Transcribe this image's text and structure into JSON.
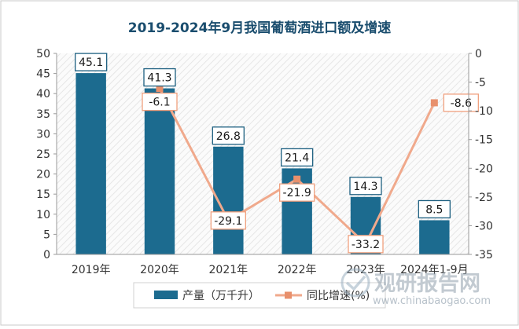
{
  "chart_data": {
    "type": "bar",
    "title": "2019-2024年9月我国葡萄酒进口额及增速",
    "categories": [
      "2019年",
      "2020年",
      "2021年",
      "2022年",
      "2023年",
      "2024年1-9月"
    ],
    "series": [
      {
        "name": "产量（万千升）",
        "type": "bar",
        "axis": "left",
        "values": [
          45.1,
          41.3,
          26.8,
          21.4,
          14.3,
          8.5
        ],
        "labels": [
          "45.1",
          "41.3",
          "26.8",
          "21.4",
          "14.3",
          "8.5"
        ]
      },
      {
        "name": "同比增速(%)",
        "type": "line",
        "axis": "right",
        "values": [
          null,
          -6.1,
          -29.1,
          -21.9,
          -33.2,
          -8.6
        ],
        "labels": [
          "",
          "-6.1",
          "-29.1",
          "-21.9",
          "-33.2",
          "-8.6"
        ]
      }
    ],
    "y_left": {
      "min": 0,
      "max": 50,
      "ticks": [
        "0",
        "5",
        "10",
        "15",
        "20",
        "25",
        "30",
        "35",
        "40",
        "45",
        "50"
      ]
    },
    "y_right": {
      "min": -35,
      "max": 0,
      "ticks": [
        "0",
        "-5",
        "-10",
        "-15",
        "-20",
        "-25",
        "-30",
        "-35"
      ]
    },
    "grid": false,
    "legend_position": "bottom",
    "colors": {
      "bar": "#1c6b8f",
      "line": "#f0a98c",
      "marker": "#e8906c",
      "label_border": "#1c5f80",
      "line_label_border": "#f0a07e",
      "title": "#1a4d6e",
      "plot_hatch": "#e6e6e6"
    }
  },
  "watermark": {
    "cn": "观研报告网",
    "url": "www.chinabaogao.com"
  }
}
